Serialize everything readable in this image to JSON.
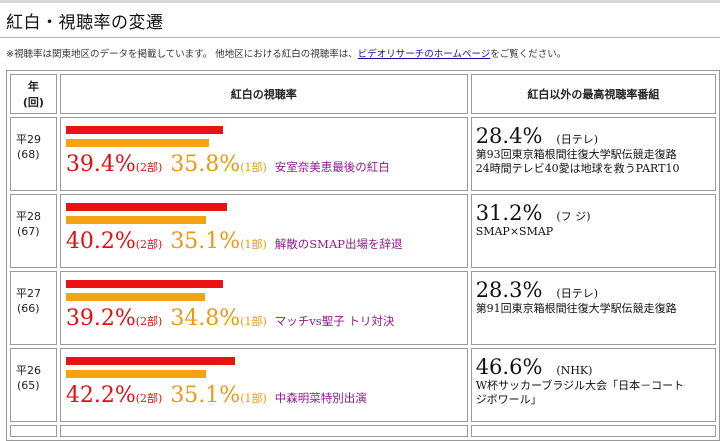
{
  "header": {
    "title": "紅白・視聴率の変遷"
  },
  "note": {
    "prefix": "※視聴率は関東地区のデータを掲載しています。 他地区における紅白の視聴率は、",
    "link": "ビデオリサーチのホームページ",
    "suffix": "をご覧ください。"
  },
  "table": {
    "headers": {
      "year_top": "年",
      "year_bottom": "(回)",
      "kohaku": "紅白の視聴率",
      "other": "紅白以外の最高視聴率番組"
    },
    "part2_label": "(2部)",
    "part1_label": "(1部)",
    "rows": [
      {
        "year": "平29",
        "edition": "(68)",
        "part2": "39.4%",
        "part1": "35.8%",
        "comment": "安室奈美恵最後の紅白",
        "other_rating": "28.4%",
        "other_network": "(日テレ)",
        "other_programs": [
          "第93回東京箱根間往復大学駅伝競走復路",
          "24時間テレビ40愛は地球を救うPART10"
        ]
      },
      {
        "year": "平28",
        "edition": "(67)",
        "part2": "40.2%",
        "part1": "35.1%",
        "comment": "解散のSMAP出場を辞退",
        "other_rating": "31.2%",
        "other_network": "(フ ジ)",
        "other_programs": [
          "SMAP×SMAP"
        ]
      },
      {
        "year": "平27",
        "edition": "(66)",
        "part2": "39.2%",
        "part1": "34.8%",
        "comment": "マッチvs聖子 トリ対決",
        "other_rating": "28.3%",
        "other_network": "(日テレ)",
        "other_programs": [
          "第91回東京箱根間往復大学駅伝競走復路"
        ]
      },
      {
        "year": "平26",
        "edition": "(65)",
        "part2": "42.2%",
        "part1": "35.1%",
        "comment": "中森明菜特別出演",
        "other_rating": "46.6%",
        "other_network": "(NHK)",
        "other_programs": [
          "W杯サッカーブラジル大会「日本－コート",
          "ジボワール」"
        ]
      }
    ]
  },
  "colors": {
    "part2_bar": "#ea1212",
    "part1_bar": "#f4a312",
    "comment_text": "#8e1b8e",
    "link": "#1a0dab"
  }
}
